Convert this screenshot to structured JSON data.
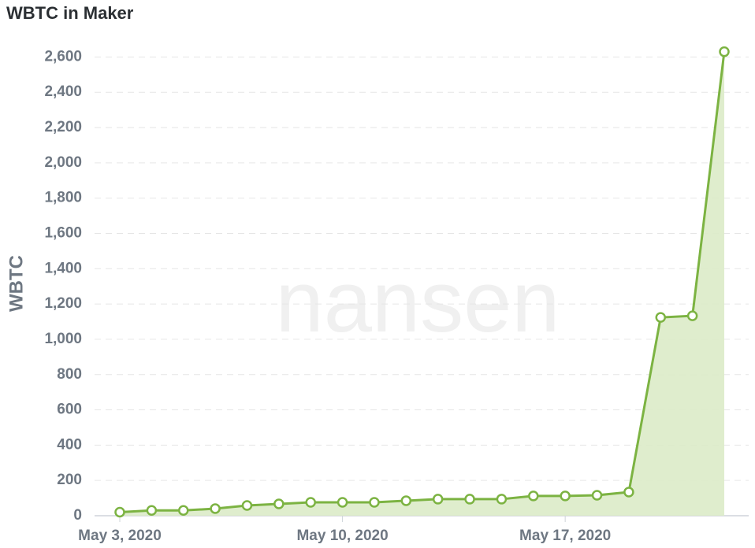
{
  "chart_data": {
    "type": "area",
    "title": "WBTC in Maker",
    "y_label": "WBTC",
    "watermark": "nansen",
    "x": [
      "2020-05-03",
      "2020-05-04",
      "2020-05-05",
      "2020-05-06",
      "2020-05-07",
      "2020-05-08",
      "2020-05-09",
      "2020-05-10",
      "2020-05-11",
      "2020-05-12",
      "2020-05-13",
      "2020-05-14",
      "2020-05-15",
      "2020-05-16",
      "2020-05-17",
      "2020-05-18",
      "2020-05-19",
      "2020-05-20",
      "2020-05-21",
      "2020-05-22"
    ],
    "xticks": [
      {
        "value": "2020-05-03",
        "label": "May 3, 2020"
      },
      {
        "value": "2020-05-10",
        "label": "May 10, 2020"
      },
      {
        "value": "2020-05-17",
        "label": "May 17, 2020"
      }
    ],
    "series": [
      {
        "name": "WBTC",
        "color": "#7cb342",
        "fill": "#dcebc8",
        "values": [
          20,
          30,
          30,
          40,
          58,
          67,
          76,
          76,
          76,
          85,
          94,
          94,
          94,
          112,
          112,
          116,
          134,
          1124,
          1133,
          2630
        ]
      }
    ],
    "ylim": [
      0,
      2700
    ],
    "yticks": [
      0,
      200,
      400,
      600,
      800,
      {
        "value": 1000,
        "label": "1,000"
      },
      {
        "value": 1200,
        "label": "1,200"
      },
      {
        "value": 1400,
        "label": "1,400"
      },
      {
        "value": 1600,
        "label": "1,600"
      },
      {
        "value": 1800,
        "label": "1,800"
      },
      {
        "value": 2000,
        "label": "2,000"
      },
      {
        "value": 2200,
        "label": "2,200"
      },
      {
        "value": 2400,
        "label": "2,400"
      },
      {
        "value": 2600,
        "label": "2,600"
      }
    ],
    "grid": true
  }
}
